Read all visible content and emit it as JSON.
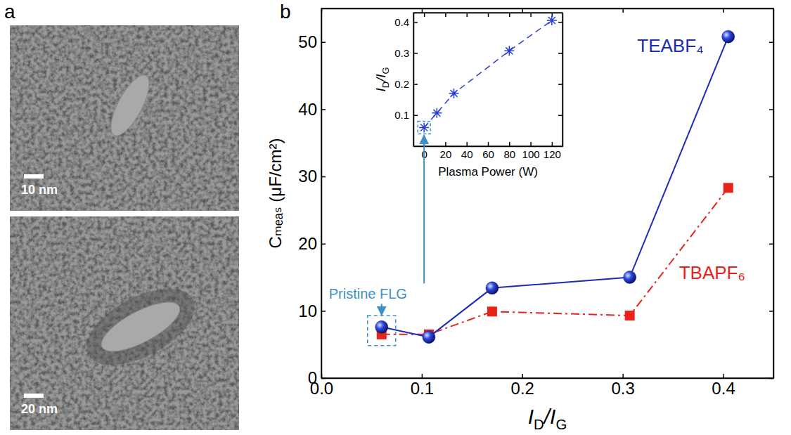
{
  "panels": [
    {
      "letter": "a",
      "images": [
        {
          "scale_bar": "10 nm"
        },
        {
          "scale_bar": "20 nm"
        }
      ]
    },
    {
      "letter": "b"
    }
  ],
  "chart_data": [
    {
      "type": "line",
      "xlabel": [
        "I",
        "D",
        "/I",
        "G"
      ],
      "ylabel": "Cₘₑₐₛ (μF/cm²)",
      "annotation": "Pristine FLG",
      "x": [
        0.06,
        0.107,
        0.17,
        0.307,
        0.405
      ],
      "series": [
        {
          "name": "TEABF₄",
          "color": "#1c2bb8",
          "marker": "circle",
          "line_style": "solid",
          "values": [
            7.6,
            6.1,
            13.4,
            15.0,
            50.8
          ]
        },
        {
          "name": "TBAPF₆",
          "color": "#e8231c",
          "marker": "square",
          "line_style": "dashdot",
          "values": [
            6.5,
            6.5,
            9.9,
            9.3,
            28.3
          ]
        }
      ],
      "xlim": [
        0,
        0.45
      ],
      "xticks": [
        {
          "value": 0,
          "label": "0.0"
        },
        0.1,
        0.2,
        0.3,
        0.4
      ],
      "ylim": [
        0,
        55
      ],
      "yticks": [
        0,
        10,
        20,
        30,
        40,
        50
      ],
      "grid": false
    },
    {
      "type": "line",
      "xlabel": "Plasma Power (W)",
      "ylabel": [
        "I",
        "D",
        "/I",
        "G"
      ],
      "x": [
        0,
        12,
        28,
        80,
        120
      ],
      "values": [
        0.06,
        0.107,
        0.17,
        0.307,
        0.405
      ],
      "color": "#2a3fd8",
      "marker": "asterisk",
      "line_style": "dashed",
      "xlim": [
        -10,
        130
      ],
      "xticks": [
        0,
        20,
        40,
        60,
        80,
        100,
        120
      ],
      "ylim": [
        0,
        0.43
      ],
      "yticks": [
        0.1,
        0.2,
        0.3,
        0.4
      ],
      "grid": false
    }
  ]
}
